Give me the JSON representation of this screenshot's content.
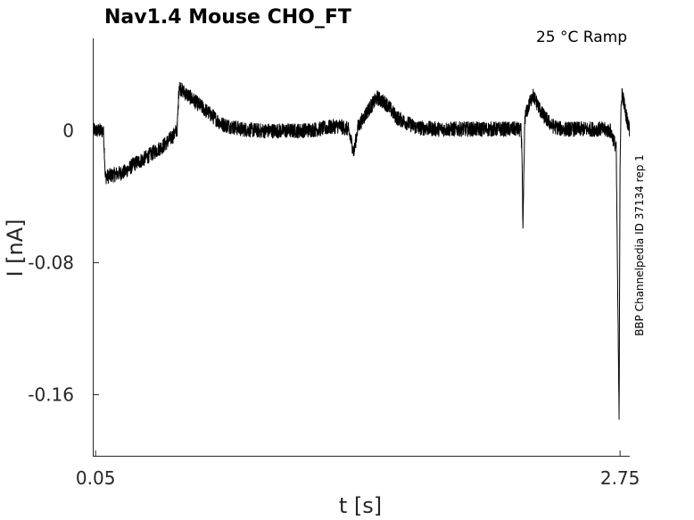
{
  "chart_data": {
    "type": "line",
    "title": "Nav1.4  Mouse  CHO_FT",
    "subtitle": "25 °C  Ramp",
    "side_label": "BBP Channelpedia ID 37134 rep 1",
    "xlabel": "t [s]",
    "ylabel": "I [nA]",
    "xlim": [
      0.04,
      2.8
    ],
    "ylim": [
      -0.197,
      0.056
    ],
    "xticks": [
      0.05,
      2.75
    ],
    "xtick_labels": [
      "0.05",
      "2.75"
    ],
    "yticks": [
      0,
      -0.08,
      -0.16
    ],
    "ytick_labels": [
      "0",
      "-0.08",
      "-0.16"
    ],
    "grid": false,
    "series": [
      {
        "color": "#000000",
        "noise_nA": 0.0045,
        "x": [
          0.04,
          0.07,
          0.09,
          0.095,
          0.1,
          0.2,
          0.25,
          0.3,
          0.35,
          0.4,
          0.45,
          0.47,
          0.48,
          0.49,
          0.5,
          0.55,
          0.6,
          0.7,
          0.8,
          0.9,
          1.0,
          1.1,
          1.2,
          1.3,
          1.35,
          1.38,
          1.4,
          1.45,
          1.5,
          1.55,
          1.6,
          1.7,
          1.8,
          1.9,
          2.0,
          2.1,
          2.18,
          2.22,
          2.24,
          2.245,
          2.25,
          2.255,
          2.26,
          2.3,
          2.35,
          2.4,
          2.45,
          2.5,
          2.55,
          2.6,
          2.65,
          2.7,
          2.73,
          2.745,
          2.75,
          2.755,
          2.76,
          2.78,
          2.8
        ],
        "y": [
          0.0,
          0.0,
          0.0,
          -0.012,
          -0.028,
          -0.025,
          -0.02,
          -0.017,
          -0.013,
          -0.009,
          -0.003,
          0.001,
          0.028,
          0.025,
          0.024,
          0.019,
          0.014,
          0.004,
          0.001,
          0.0,
          0.0,
          0.0,
          0.001,
          0.003,
          0.001,
          -0.013,
          0.002,
          0.012,
          0.02,
          0.016,
          0.008,
          0.002,
          0.001,
          0.001,
          0.001,
          0.001,
          0.001,
          0.001,
          0.0,
          -0.012,
          -0.062,
          -0.025,
          0.008,
          0.022,
          0.01,
          0.003,
          0.001,
          0.001,
          0.001,
          0.001,
          0.001,
          0.0,
          -0.01,
          -0.175,
          -0.02,
          0.012,
          0.024,
          0.01,
          0.0
        ]
      }
    ]
  }
}
